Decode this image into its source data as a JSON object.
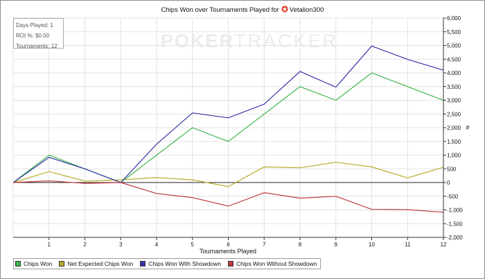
{
  "header": {
    "title_prefix": "Chips Won over Tournaments Played for",
    "player": "Vetalion300"
  },
  "stats": {
    "days_played": "Days Played: 1",
    "roi": "ROI %: $0.00",
    "tournaments": "Tournaments: 12"
  },
  "watermark": {
    "part1": "POKER",
    "part2": "TRACKER"
  },
  "colors": {
    "chips_won": "#3cb44b",
    "net_expected": "#b5ad28",
    "with_showdown": "#3434a8",
    "without_showdown": "#c0393b",
    "player_icon": "#e8412a"
  },
  "chart_data": {
    "type": "line",
    "title": "Chips Won over Tournaments Played for Vetalion300",
    "xlabel": "Tournaments Played",
    "ylabel": "#",
    "x": [
      0,
      1,
      2,
      3,
      4,
      5,
      6,
      7,
      8,
      9,
      10,
      11,
      12
    ],
    "x_tick_labels": [
      "1",
      "2",
      "3",
      "4",
      "5",
      "6",
      "7",
      "8",
      "9",
      "10",
      "11",
      "12"
    ],
    "xlim": [
      0,
      12
    ],
    "ylim": [
      -2000,
      6000
    ],
    "y_ticks": [
      -2000,
      -1500,
      -1000,
      -500,
      0,
      500,
      1000,
      1500,
      2000,
      2500,
      3000,
      3500,
      4000,
      4500,
      5000,
      5500,
      6000
    ],
    "y_tick_labels": [
      "-2,000",
      "-1,500",
      "-1,000",
      "-500",
      "0",
      "500",
      "1,000",
      "1,500",
      "2,000",
      "2,500",
      "3,000",
      "3,500",
      "4,000",
      "4,500",
      "5,000",
      "5,500",
      "6,000"
    ],
    "grid": true,
    "legend_position": "bottom-left",
    "series": [
      {
        "name": "Chips Won",
        "color": "#3cb44b",
        "values": [
          0,
          1000,
          500,
          0,
          1000,
          2000,
          1500,
          2500,
          3500,
          3000,
          4000,
          3500,
          3000
        ]
      },
      {
        "name": "Net Expected Chips Won",
        "color": "#b5ad28",
        "values": [
          0,
          400,
          50,
          100,
          180,
          100,
          -150,
          570,
          540,
          740,
          570,
          170,
          560
        ]
      },
      {
        "name": "Chips Won With Showdown",
        "color": "#3434a8",
        "values": [
          0,
          920,
          500,
          0,
          1400,
          2540,
          2360,
          2860,
          4050,
          3480,
          4980,
          4490,
          4100
        ]
      },
      {
        "name": "Chips Won Without Showdown",
        "color": "#c0393b",
        "values": [
          0,
          60,
          -30,
          0,
          -400,
          -550,
          -860,
          -370,
          -570,
          -500,
          -980,
          -990,
          -1080
        ]
      }
    ]
  }
}
